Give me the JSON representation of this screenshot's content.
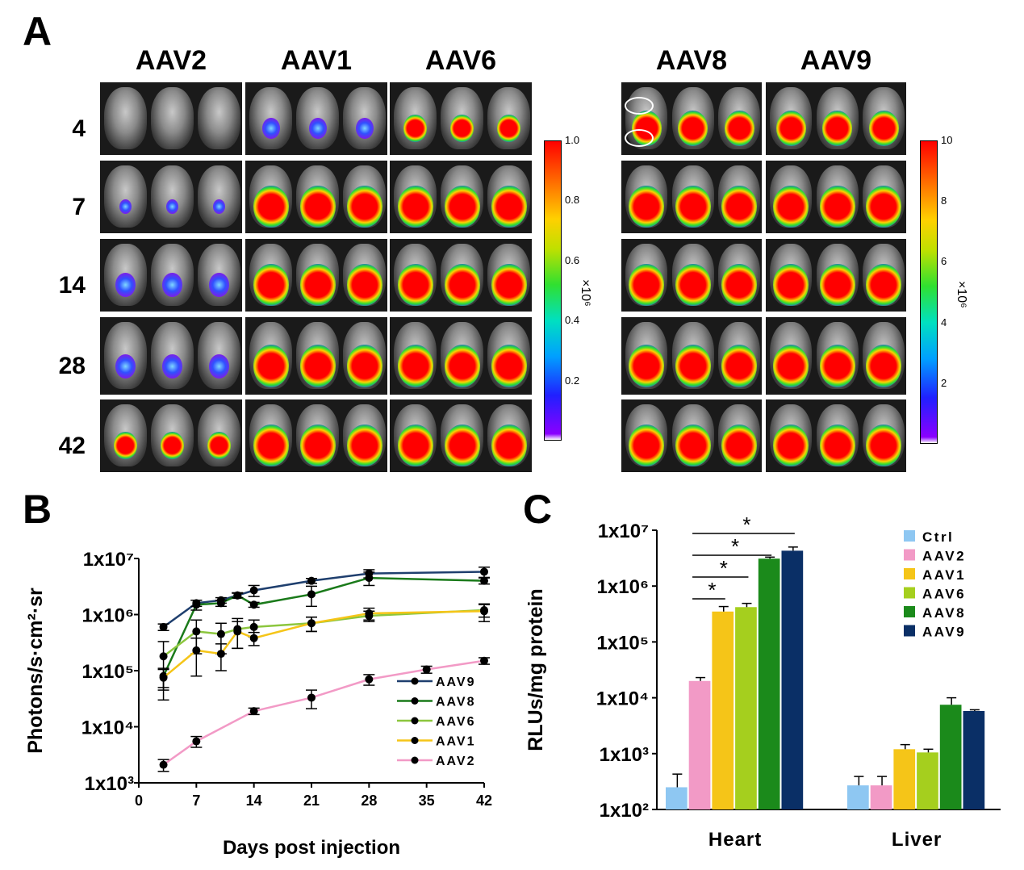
{
  "panel_a": {
    "letter": "A",
    "columns": [
      "AAV2",
      "AAV1",
      "AAV6",
      "AAV8",
      "AAV9"
    ],
    "rows": [
      "4",
      "7",
      "14",
      "28",
      "42"
    ],
    "colorbar_left": {
      "ticks": [
        "1.0",
        "0.8",
        "0.6",
        "0.4",
        "0.2"
      ],
      "exponent": "×10⁶"
    },
    "colorbar_right": {
      "ticks": [
        "10",
        "8",
        "6",
        "4",
        "2"
      ],
      "exponent": "×10⁶"
    }
  },
  "panel_b": {
    "letter": "B"
  },
  "panel_c": {
    "letter": "C"
  },
  "chart_data": [
    {
      "type": "line",
      "xlabel": "Days post injection",
      "ylabel": "Photons/s·cm²·sr",
      "x_ticks": [
        "0",
        "7",
        "14",
        "21",
        "28",
        "35",
        "42"
      ],
      "xlim": [
        0,
        42
      ],
      "y_scale": "log",
      "ylim": [
        1000,
        10000000
      ],
      "y_ticks": [
        "1x10³",
        "1x10⁴",
        "1x10⁵",
        "1x10⁶",
        "1x10⁷"
      ],
      "legend": "bottom-right",
      "series": [
        {
          "name": "AAV9",
          "color": "#1f3f6e",
          "x": [
            3,
            7,
            10,
            12,
            14,
            21,
            28,
            42
          ],
          "y": [
            600000,
            1600000,
            1800000,
            2200000,
            2700000,
            4000000,
            5400000,
            5800000
          ],
          "err": [
            80000,
            200000,
            200000,
            250000,
            600000,
            400000,
            900000,
            1200000
          ]
        },
        {
          "name": "AAV8",
          "color": "#1a7a1a",
          "x": [
            3,
            7,
            10,
            12,
            14,
            21,
            28,
            42
          ],
          "y": [
            80000,
            1500000,
            1600000,
            2200000,
            1500000,
            2300000,
            4500000,
            4000000
          ],
          "err": [
            30000,
            300000,
            200000,
            200000,
            150000,
            900000,
            1200000,
            500000
          ]
        },
        {
          "name": "AAV6",
          "color": "#8cc63e",
          "x": [
            3,
            7,
            10,
            12,
            14,
            21,
            28,
            42
          ],
          "y": [
            180000,
            500000,
            450000,
            550000,
            600000,
            700000,
            950000,
            1200000
          ],
          "err": [
            150000,
            300000,
            250000,
            300000,
            200000,
            200000,
            200000,
            300000
          ]
        },
        {
          "name": "AAV1",
          "color": "#f5c518",
          "x": [
            3,
            7,
            10,
            12,
            14,
            21,
            28,
            42
          ],
          "y": [
            75000,
            230000,
            200000,
            500000,
            380000,
            700000,
            1050000,
            1150000
          ],
          "err": [
            30000,
            150000,
            100000,
            250000,
            100000,
            200000,
            250000,
            400000
          ]
        },
        {
          "name": "AAV2",
          "color": "#f29ac6",
          "x": [
            3,
            7,
            14,
            21,
            28,
            35,
            42
          ],
          "y": [
            2100,
            5500,
            19000,
            33000,
            70000,
            105000,
            150000
          ],
          "err": [
            500,
            1200,
            2500,
            12000,
            15000,
            15000,
            20000
          ]
        }
      ]
    },
    {
      "type": "bar",
      "ylabel": "RLUs/mg protein",
      "categories": [
        "Heart",
        "Liver"
      ],
      "y_scale": "log",
      "ylim": [
        100,
        10000000
      ],
      "y_ticks": [
        "1x10²",
        "1x10³",
        "1x10⁴",
        "1x10⁵",
        "1x10⁶",
        "1x10⁷"
      ],
      "legend": "top-right",
      "significance_marker": "*",
      "series": [
        {
          "name": "Ctrl",
          "color": "#8ec7f2",
          "values": [
            250,
            270
          ],
          "err": [
            180,
            120
          ]
        },
        {
          "name": "AAV2",
          "color": "#f29ac6",
          "values": [
            20000,
            270
          ],
          "err": [
            3000,
            120
          ]
        },
        {
          "name": "AAV1",
          "color": "#f5c518",
          "values": [
            350000,
            1200
          ],
          "err": [
            80000,
            250
          ]
        },
        {
          "name": "AAV6",
          "color": "#a5cf1e",
          "values": [
            420000,
            1050
          ],
          "err": [
            70000,
            150
          ]
        },
        {
          "name": "AAV8",
          "color": "#1b8a1b",
          "values": [
            3100000,
            7500
          ],
          "err": [
            200000,
            2500
          ]
        },
        {
          "name": "AAV9",
          "color": "#0a2f66",
          "values": [
            4300000,
            5800
          ],
          "err": [
            700000,
            300
          ]
        }
      ]
    }
  ]
}
